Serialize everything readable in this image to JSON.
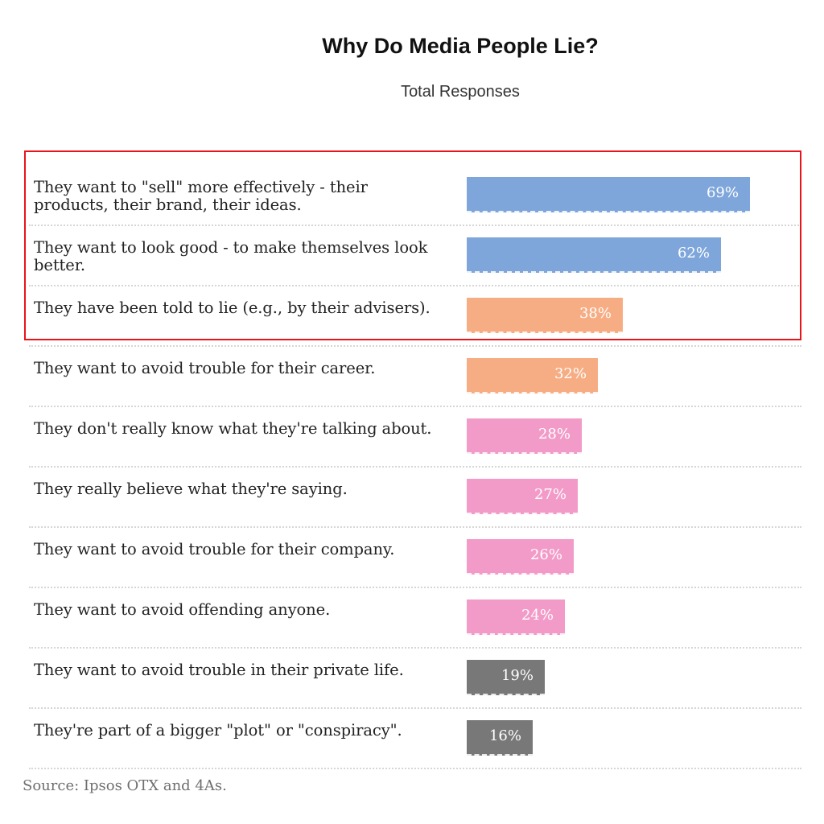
{
  "chart_data": {
    "type": "bar",
    "orientation": "horizontal",
    "title": "Why Do Media People Lie?",
    "subtitle": "Total Responses",
    "xlim": [
      0,
      100
    ],
    "value_suffix": "%",
    "categories": [
      "They want to \"sell\" more effectively - their products, their brand, their ideas.",
      "They want to look good - to make themselves look better.",
      "They have been told to lie (e.g., by their advisers).",
      "They want to avoid trouble for their career.",
      "They don't really know what they're talking about.",
      "They really believe what they're saying.",
      "They want to avoid trouble for their company.",
      "They want to avoid offending anyone.",
      "They want to avoid trouble in their private life.",
      "They're part of a bigger \"plot\" or \"conspiracy\"."
    ],
    "values": [
      69,
      62,
      38,
      32,
      28,
      27,
      26,
      24,
      19,
      16
    ],
    "bar_colors": [
      "#7ea6db",
      "#7ea6db",
      "#f7ad84",
      "#f7ad84",
      "#f29bc8",
      "#f29bc8",
      "#f29bc8",
      "#f29bc8",
      "#787878",
      "#787878"
    ],
    "highlighted_rows": [
      0,
      1,
      2
    ],
    "highlight_color": "#e8141a",
    "grid": true
  },
  "source": "Source: Ipsos OTX and 4As."
}
